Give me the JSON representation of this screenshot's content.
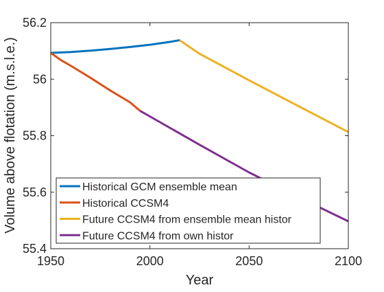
{
  "chart_data": {
    "type": "line",
    "xlabel": "Year",
    "ylabel": "Volume above flotation (m.s.l.e.)",
    "xlim": [
      1950,
      2100
    ],
    "ylim": [
      55.4,
      56.2
    ],
    "xticks": [
      1950,
      2000,
      2050,
      2100
    ],
    "xtick_labels": [
      "1950",
      "2000",
      "2050",
      "2100"
    ],
    "yticks": [
      55.4,
      55.6,
      55.8,
      56.0,
      56.2
    ],
    "ytick_labels": [
      "55.4",
      "55.6",
      "55.8",
      "56",
      "56.2"
    ],
    "grid": false,
    "legend_position": "bottom-left",
    "series": [
      {
        "name": "Historical GCM ensemble mean",
        "color": "#0072BD",
        "x": [
          1950,
          1960,
          1970,
          1980,
          1990,
          2000,
          2010,
          2015
        ],
        "y": [
          56.093,
          56.096,
          56.101,
          56.107,
          56.114,
          56.122,
          56.132,
          56.138
        ]
      },
      {
        "name": "Historical CCSM4",
        "color": "#D95319",
        "x": [
          1950,
          1955,
          1960,
          1970,
          1980,
          1990,
          1995
        ],
        "y": [
          56.093,
          56.068,
          56.048,
          56.005,
          55.96,
          55.918,
          55.888
        ]
      },
      {
        "name": "Future CCSM4 from ensemble mean histor",
        "color": "#EDB120",
        "x": [
          2015,
          2017,
          2025,
          2050,
          2075,
          2100
        ],
        "y": [
          56.138,
          56.128,
          56.09,
          55.996,
          55.904,
          55.813
        ]
      },
      {
        "name": "Future CCSM4 from own histor",
        "color": "#7E2F8E",
        "x": [
          1995,
          1997,
          2000,
          2025,
          2050,
          2075,
          2100
        ],
        "y": [
          55.888,
          55.88,
          55.868,
          55.768,
          55.67,
          55.582,
          55.497
        ]
      }
    ]
  }
}
